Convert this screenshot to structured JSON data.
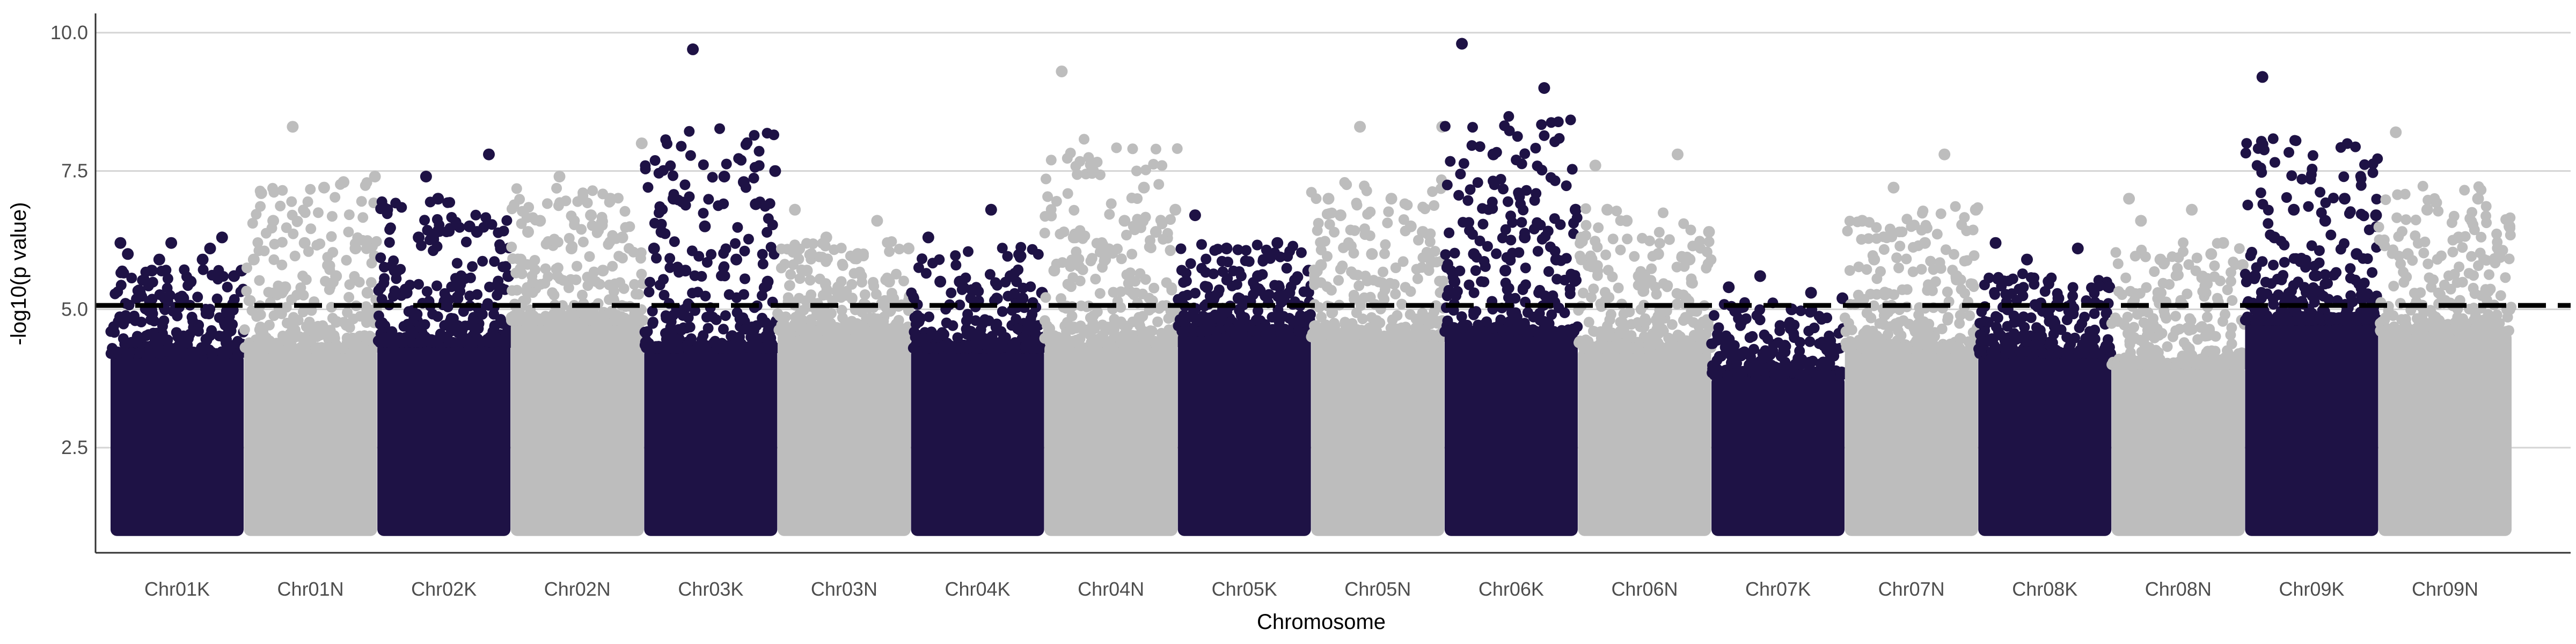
{
  "chart_data": {
    "type": "scatter",
    "subtype": "manhattan",
    "title": "",
    "xlabel": "Chromosome",
    "ylabel": "-log10(p value)",
    "ylim": [
      0.6,
      10.3
    ],
    "yticks": [
      2.5,
      5.0,
      7.5,
      10.0
    ],
    "ytick_labels": [
      "2.5",
      "5.0",
      "7.5",
      "10.0"
    ],
    "threshold": 5.07,
    "grid": "horizontal major gridlines only",
    "legend": "none",
    "colors": {
      "dark": "#1e1245",
      "light": "#bdbdbd",
      "threshold_line": "#000000",
      "grid": "#d4d4d4"
    },
    "chromosomes": [
      {
        "name": "Chr01K",
        "color": "dark",
        "density_top": 4.2,
        "points": [
          6.0,
          6.1,
          5.9,
          5.7,
          5.5,
          5.3,
          6.3,
          6.2,
          6.2,
          5.9,
          5.7,
          5.6,
          5.2
        ]
      },
      {
        "name": "Chr01N",
        "color": "light",
        "density_top": 4.3,
        "points": [
          7.1,
          7.3,
          8.3,
          7.4,
          7.2,
          6.6,
          6.1,
          6.2,
          5.9,
          5.6,
          5.4,
          5.3
        ]
      },
      {
        "name": "Chr02K",
        "color": "dark",
        "density_top": 4.4,
        "points": [
          5.7,
          6.4,
          7.4,
          5.6,
          5.2,
          5.3,
          7.8,
          7.0,
          6.8,
          6.5,
          6.3,
          6.1
        ]
      },
      {
        "name": "Chr02N",
        "color": "light",
        "density_top": 4.8,
        "points": [
          6.4,
          7.0,
          7.4,
          8.0,
          6.7,
          6.6,
          6.3,
          6.1,
          5.9,
          5.7
        ]
      },
      {
        "name": "Chr03K",
        "color": "dark",
        "density_top": 4.3,
        "points": [
          6.4,
          7.3,
          9.7,
          7.5,
          7.4,
          7.0,
          6.9,
          6.5,
          6.1,
          5.9,
          5.7,
          5.5
        ]
      },
      {
        "name": "Chr03N",
        "color": "light",
        "density_top": 4.6,
        "points": [
          6.8,
          6.6,
          6.3,
          6.1,
          6.0,
          5.7,
          5.5,
          5.4
        ]
      },
      {
        "name": "Chr04K",
        "color": "dark",
        "density_top": 4.3,
        "points": [
          6.3,
          5.6,
          5.5,
          5.3,
          6.8,
          5.5,
          5.2
        ]
      },
      {
        "name": "Chr04N",
        "color": "light",
        "density_top": 4.4,
        "points": [
          9.3,
          7.2,
          7.5,
          6.8,
          6.6,
          6.3,
          6.4,
          5.9,
          5.7
        ]
      },
      {
        "name": "Chr05K",
        "color": "dark",
        "density_top": 4.6,
        "points": [
          6.7,
          6.2,
          6.1,
          5.7,
          5.6,
          5.4,
          5.3,
          5.2
        ]
      },
      {
        "name": "Chr05N",
        "color": "light",
        "density_top": 4.5,
        "points": [
          7.0,
          6.5,
          8.3,
          8.3,
          7.0,
          6.7,
          6.4,
          6.0,
          5.8
        ]
      },
      {
        "name": "Chr06K",
        "color": "dark",
        "density_top": 4.6,
        "points": [
          9.8,
          9.0,
          7.8,
          6.8,
          6.3,
          6.0,
          5.9,
          5.7,
          5.5
        ]
      },
      {
        "name": "Chr06N",
        "color": "light",
        "density_top": 4.3,
        "points": [
          7.6,
          7.8,
          6.6,
          6.4,
          6.0,
          6.8,
          5.9,
          5.6
        ]
      },
      {
        "name": "Chr07K",
        "color": "dark",
        "density_top": 3.8,
        "points": [
          5.4,
          5.3,
          5.6,
          5.2,
          5.0
        ]
      },
      {
        "name": "Chr07N",
        "color": "light",
        "density_top": 4.3,
        "points": [
          6.6,
          7.8,
          7.2,
          6.8,
          6.2,
          5.9,
          5.6
        ]
      },
      {
        "name": "Chr08K",
        "color": "dark",
        "density_top": 4.2,
        "points": [
          6.2,
          6.1,
          5.9,
          5.4,
          5.2,
          5.0
        ]
      },
      {
        "name": "Chr08N",
        "color": "light",
        "density_top": 4.0,
        "points": [
          7.0,
          6.0,
          5.9,
          5.8,
          6.8,
          6.6,
          6.2
        ]
      },
      {
        "name": "Chr09K",
        "color": "dark",
        "density_top": 4.8,
        "points": [
          9.2,
          7.0,
          6.8,
          6.7,
          6.6,
          6.3,
          6.0,
          5.8,
          5.6
        ]
      },
      {
        "name": "Chr09N",
        "color": "light",
        "density_top": 4.6,
        "points": [
          8.2,
          7.0,
          6.8,
          6.5,
          6.3,
          6.0
        ]
      }
    ]
  }
}
